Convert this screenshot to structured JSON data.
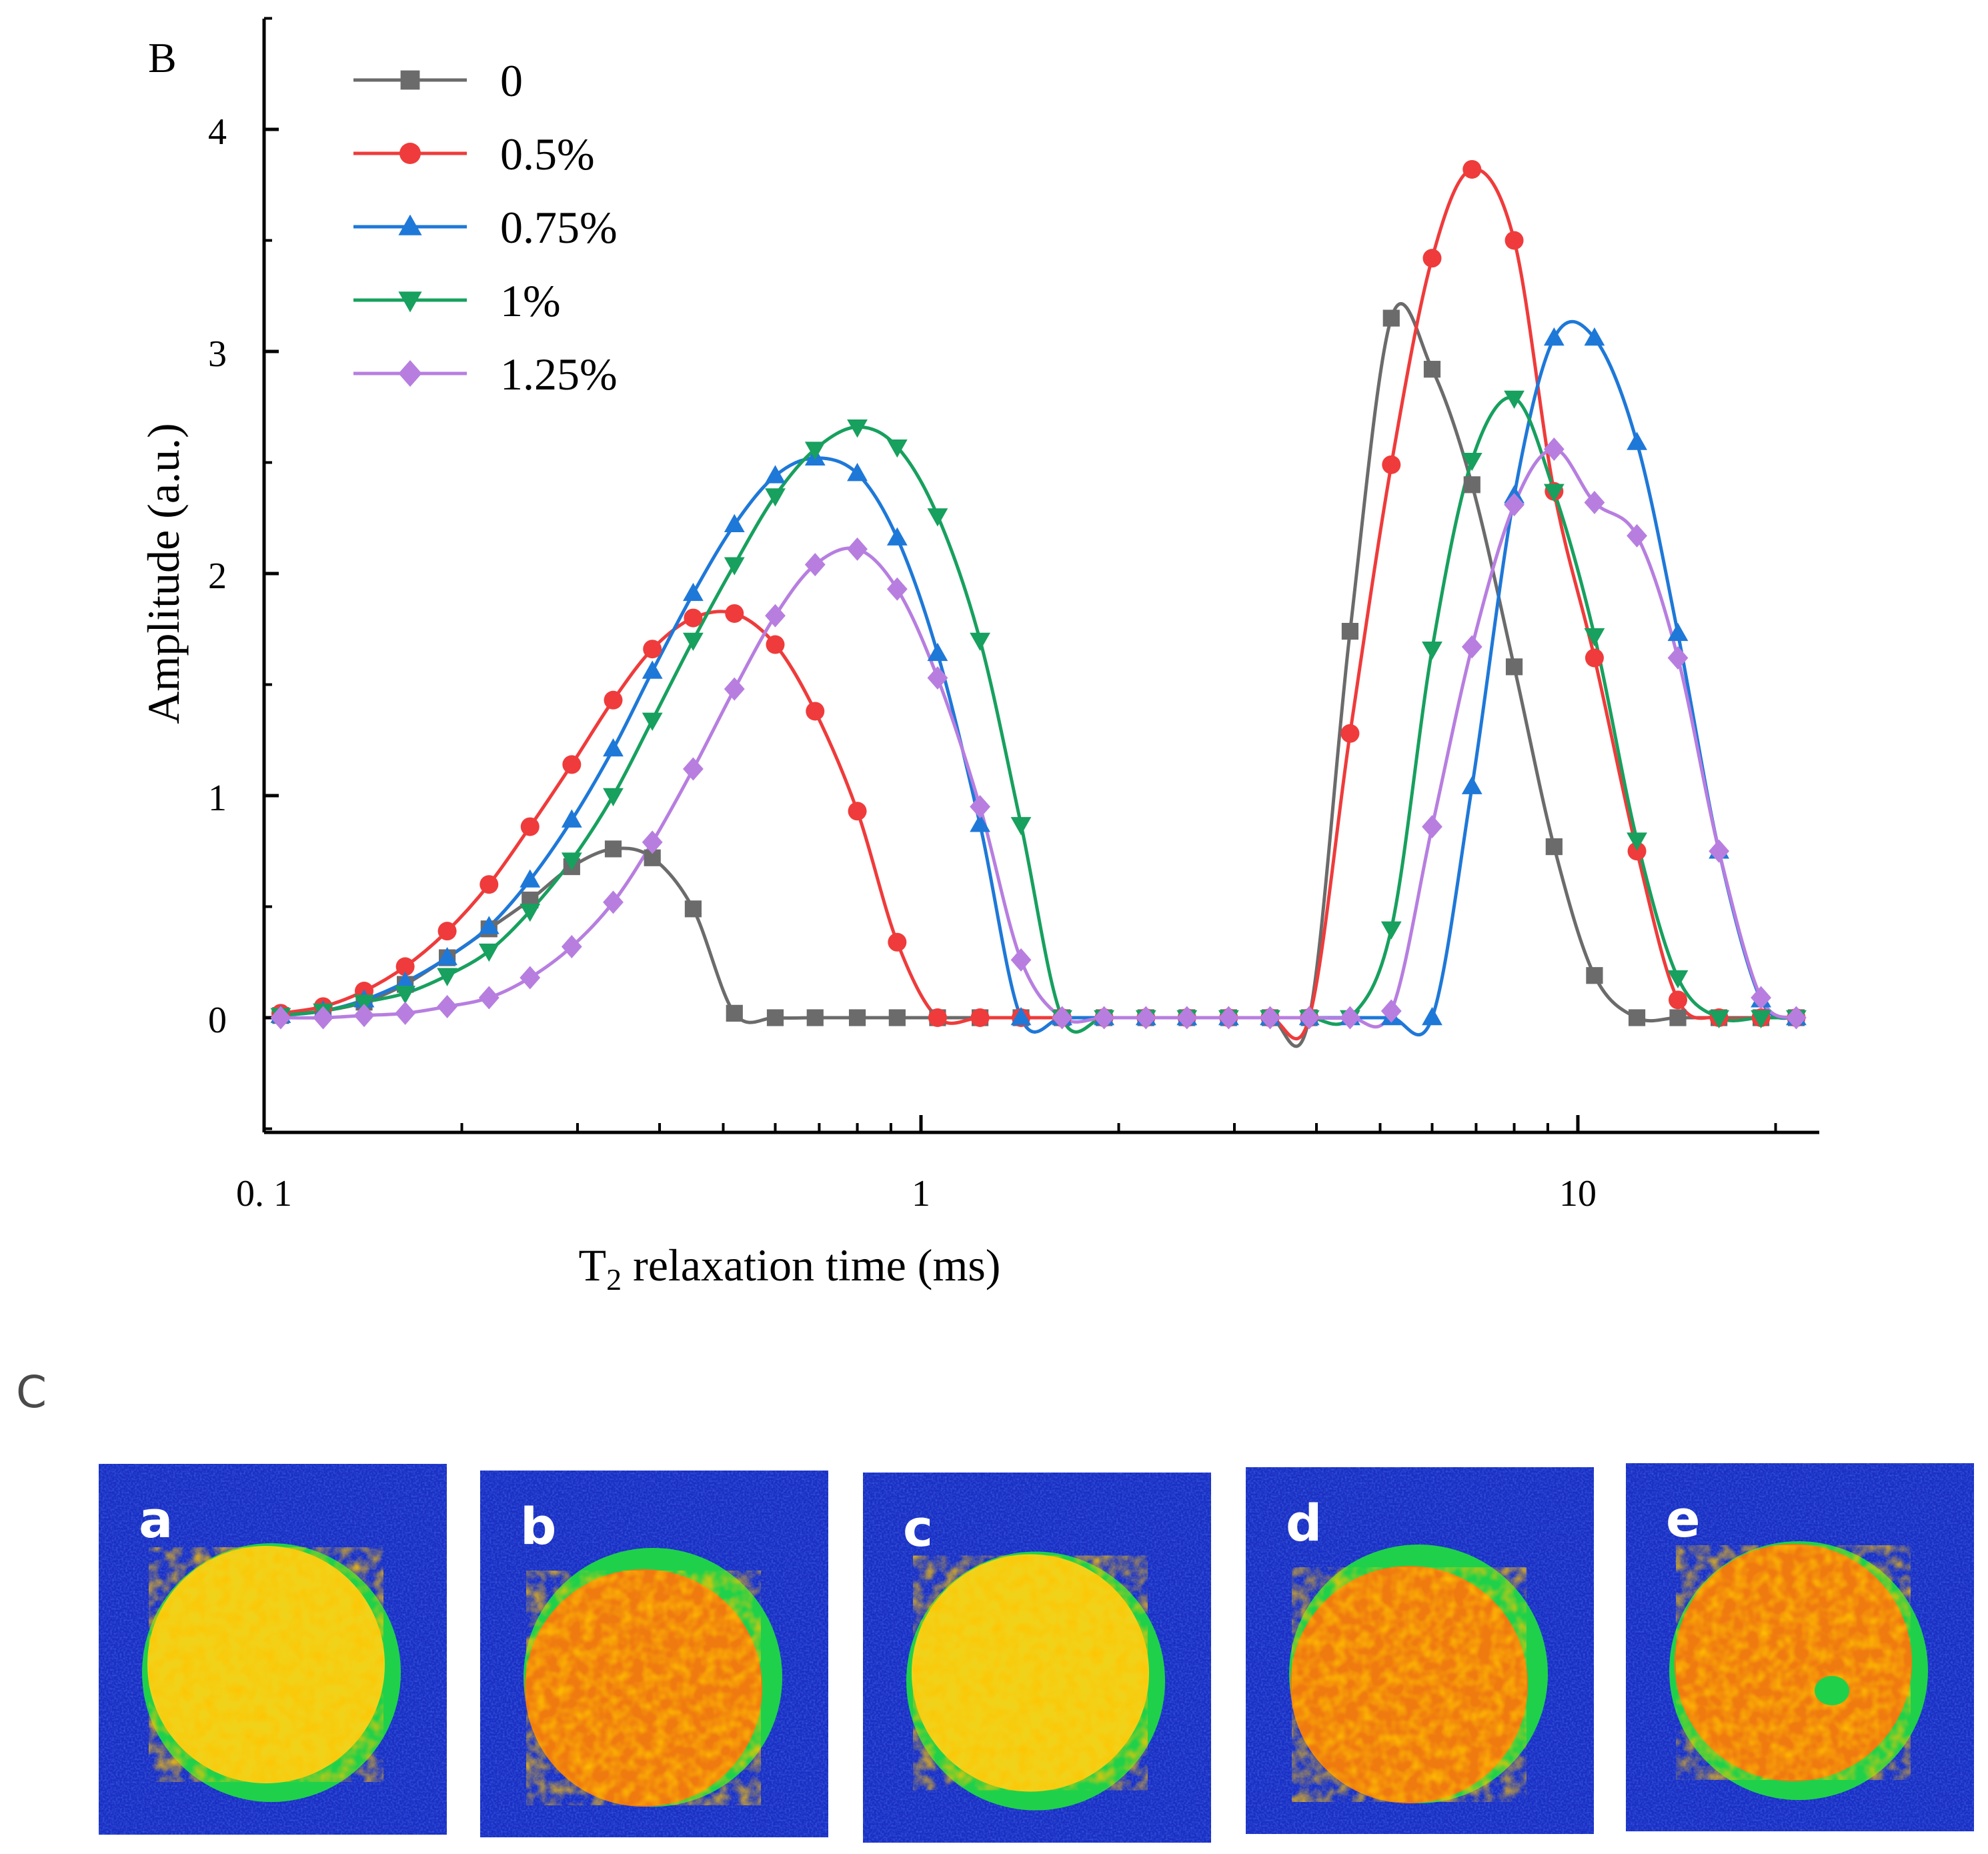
{
  "chart_data": {
    "type": "line",
    "panel_label": "B",
    "title": "",
    "xlabel": "T₂ relaxation time (ms)",
    "xlabel_main": "T",
    "xlabel_sub": "2",
    "xlabel_rest": " relaxation time (ms)",
    "ylabel": "Amplitude (a.u.)",
    "xscale": "log",
    "xlim": [
      0.1,
      22
    ],
    "ylim": [
      -0.5,
      4.5
    ],
    "xticks": [
      {
        "value": 0.1,
        "label": "0. 1"
      },
      {
        "value": 1,
        "label": "1"
      },
      {
        "value": 10,
        "label": "10"
      }
    ],
    "yticks": [
      {
        "value": 0,
        "label": "0"
      },
      {
        "value": 1,
        "label": "1"
      },
      {
        "value": 2,
        "label": "2"
      },
      {
        "value": 3,
        "label": "3"
      },
      {
        "value": 4,
        "label": "4"
      }
    ],
    "legend_position": "top-left",
    "series": [
      {
        "name": "0",
        "color": "#6b6b6b",
        "marker": "square",
        "x": [
          0.106,
          0.123,
          0.142,
          0.164,
          0.19,
          0.22,
          0.254,
          0.294,
          0.34,
          0.39,
          0.45,
          0.52,
          0.6,
          0.69,
          0.8,
          0.92,
          1.06,
          1.23,
          1.42,
          1.64,
          1.9,
          2.2,
          2.54,
          2.94,
          3.4,
          3.9,
          4.5,
          5.2,
          6.0,
          6.9,
          8.0,
          9.2,
          10.6,
          12.3,
          14.2,
          16.4,
          19.0,
          21.5
        ],
        "values": [
          0.01,
          0.03,
          0.07,
          0.15,
          0.27,
          0.4,
          0.53,
          0.68,
          0.76,
          0.72,
          0.49,
          0.02,
          0,
          0,
          0,
          0,
          0,
          0,
          0,
          0,
          0,
          0,
          0,
          0,
          0,
          0,
          1.74,
          3.15,
          2.92,
          2.4,
          1.58,
          0.77,
          0.19,
          0,
          0,
          0,
          0,
          0
        ]
      },
      {
        "name": "0.5%",
        "color": "#ef3b3b",
        "marker": "circle",
        "x": [
          0.106,
          0.123,
          0.142,
          0.164,
          0.19,
          0.22,
          0.254,
          0.294,
          0.34,
          0.39,
          0.45,
          0.52,
          0.6,
          0.69,
          0.8,
          0.92,
          1.06,
          1.23,
          1.42,
          1.64,
          1.9,
          2.2,
          2.54,
          2.94,
          3.4,
          3.9,
          4.5,
          5.2,
          6.0,
          6.9,
          8.0,
          9.2,
          10.6,
          12.3,
          14.2,
          16.4,
          19.0,
          21.5
        ],
        "values": [
          0.02,
          0.05,
          0.12,
          0.23,
          0.39,
          0.6,
          0.86,
          1.14,
          1.43,
          1.66,
          1.8,
          1.82,
          1.68,
          1.38,
          0.93,
          0.34,
          0,
          0,
          0,
          0,
          0,
          0,
          0,
          0,
          0,
          0,
          1.28,
          2.49,
          3.42,
          3.82,
          3.5,
          2.37,
          1.62,
          0.75,
          0.08,
          0,
          0,
          0
        ]
      },
      {
        "name": "0.75%",
        "color": "#1e78d8",
        "marker": "triangle-up",
        "x": [
          0.106,
          0.123,
          0.142,
          0.164,
          0.19,
          0.22,
          0.254,
          0.294,
          0.34,
          0.39,
          0.45,
          0.52,
          0.6,
          0.69,
          0.8,
          0.92,
          1.06,
          1.23,
          1.42,
          1.64,
          1.9,
          2.2,
          2.54,
          2.94,
          3.4,
          3.9,
          4.5,
          5.2,
          6.0,
          6.9,
          8.0,
          9.2,
          10.6,
          12.3,
          14.2,
          16.4,
          19.0,
          21.5
        ],
        "values": [
          0.01,
          0.03,
          0.08,
          0.16,
          0.27,
          0.41,
          0.62,
          0.89,
          1.21,
          1.56,
          1.91,
          2.22,
          2.44,
          2.52,
          2.45,
          2.16,
          1.64,
          0.87,
          0,
          0,
          0,
          0,
          0,
          0,
          0,
          0,
          0,
          0,
          0,
          1.04,
          2.35,
          3.06,
          3.06,
          2.59,
          1.73,
          0.75,
          0.08,
          0
        ]
      },
      {
        "name": "1%",
        "color": "#17a05e",
        "marker": "triangle-down",
        "x": [
          0.106,
          0.123,
          0.142,
          0.164,
          0.19,
          0.22,
          0.254,
          0.294,
          0.34,
          0.39,
          0.45,
          0.52,
          0.6,
          0.69,
          0.8,
          0.92,
          1.06,
          1.23,
          1.42,
          1.64,
          1.9,
          2.2,
          2.54,
          2.94,
          3.4,
          3.9,
          4.5,
          5.2,
          6.0,
          6.9,
          8.0,
          9.2,
          10.6,
          12.3,
          14.2,
          16.4,
          19.0,
          21.5
        ],
        "values": [
          0.01,
          0.03,
          0.07,
          0.11,
          0.19,
          0.3,
          0.48,
          0.71,
          1.0,
          1.34,
          1.7,
          2.04,
          2.35,
          2.56,
          2.66,
          2.57,
          2.26,
          1.7,
          0.87,
          0,
          0,
          0,
          0,
          0,
          0,
          0,
          0,
          0.4,
          1.66,
          2.51,
          2.79,
          2.37,
          1.72,
          0.8,
          0.18,
          0,
          0,
          0
        ]
      },
      {
        "name": "1.25%",
        "color": "#b77ee0",
        "marker": "diamond",
        "x": [
          0.106,
          0.123,
          0.142,
          0.164,
          0.19,
          0.22,
          0.254,
          0.294,
          0.34,
          0.39,
          0.45,
          0.52,
          0.6,
          0.69,
          0.8,
          0.92,
          1.06,
          1.23,
          1.42,
          1.64,
          1.9,
          2.2,
          2.54,
          2.94,
          3.4,
          3.9,
          4.5,
          5.2,
          6.0,
          6.9,
          8.0,
          9.2,
          10.6,
          12.3,
          14.2,
          16.4,
          19.0,
          21.5
        ],
        "values": [
          0,
          0,
          0.01,
          0.02,
          0.05,
          0.09,
          0.18,
          0.32,
          0.52,
          0.79,
          1.12,
          1.48,
          1.81,
          2.04,
          2.11,
          1.93,
          1.53,
          0.95,
          0.26,
          0,
          0,
          0,
          0,
          0,
          0,
          0,
          0,
          0.03,
          0.86,
          1.67,
          2.31,
          2.56,
          2.32,
          2.17,
          1.62,
          0.75,
          0.09,
          0
        ]
      }
    ]
  },
  "panel_c": {
    "label": "C",
    "panels": [
      {
        "label": "a",
        "crescent": "bottom-right"
      },
      {
        "label": "b",
        "crescent": "top-right"
      },
      {
        "label": "c",
        "crescent": "bottom-right"
      },
      {
        "label": "d",
        "crescent": "top-right"
      },
      {
        "label": "e",
        "crescent": "bottom-right"
      }
    ]
  }
}
